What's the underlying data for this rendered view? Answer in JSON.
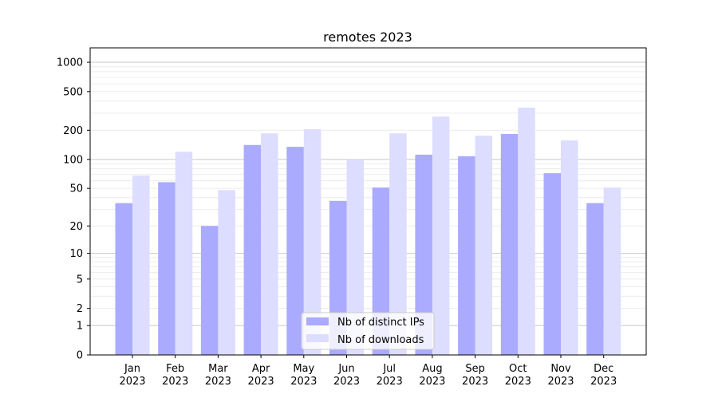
{
  "chart_data": {
    "type": "bar",
    "title": "remotes 2023",
    "xlabel": "",
    "ylabel": "",
    "yscale": "log(1+y)",
    "ylim": [
      0,
      1300
    ],
    "yticks": [
      0,
      1,
      2,
      5,
      10,
      20,
      50,
      100,
      200,
      500,
      1000
    ],
    "grid": true,
    "legend_position": "bottom-center",
    "categories": [
      "Jan\n2023",
      "Feb\n2023",
      "Mar\n2023",
      "Apr\n2023",
      "May\n2023",
      "Jun\n2023",
      "Jul\n2023",
      "Aug\n2023",
      "Sep\n2023",
      "Oct\n2023",
      "Nov\n2023",
      "Dec\n2023"
    ],
    "series": [
      {
        "name": "Nb of distinct IPs",
        "color": "#aaaaff",
        "values": [
          35,
          58,
          20,
          141,
          135,
          37,
          51,
          112,
          108,
          183,
          72,
          35
        ]
      },
      {
        "name": "Nb of downloads",
        "color": "#ddddff",
        "values": [
          68,
          120,
          48,
          186,
          205,
          100,
          186,
          277,
          176,
          342,
          157,
          51
        ]
      }
    ]
  }
}
